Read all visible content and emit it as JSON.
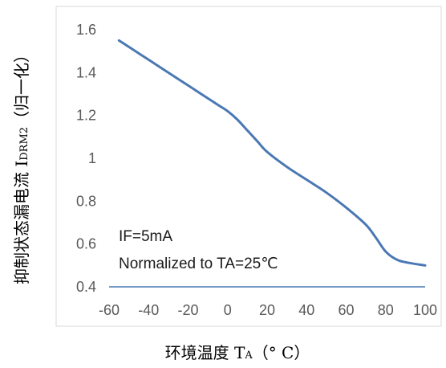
{
  "chart_data": {
    "type": "line",
    "title": "",
    "xlabel": {
      "main": "环境温度 T",
      "sub": "A",
      "unit": "（° C）"
    },
    "ylabel": {
      "main": "抑制状态漏电流 I",
      "sub": "DRM2",
      "unit": "（归一化）"
    },
    "xlim": [
      -60,
      100
    ],
    "ylim": [
      0.4,
      1.6
    ],
    "x_ticks": [
      "-60",
      "-40",
      "-20",
      "0",
      "20",
      "40",
      "60",
      "80",
      "100"
    ],
    "y_ticks": [
      "0.4",
      "0.6",
      "0.8",
      "1",
      "1.2",
      "1.4",
      "1.6"
    ],
    "grid": false,
    "series": [
      {
        "color": "#4a78b4",
        "points": [
          [
            -55,
            1.55
          ],
          [
            -45,
            1.49
          ],
          [
            -35,
            1.43
          ],
          [
            -25,
            1.37
          ],
          [
            -15,
            1.31
          ],
          [
            -5,
            1.25
          ],
          [
            0,
            1.22
          ],
          [
            5,
            1.18
          ],
          [
            10,
            1.13
          ],
          [
            15,
            1.08
          ],
          [
            20,
            1.03
          ],
          [
            30,
            0.96
          ],
          [
            40,
            0.9
          ],
          [
            50,
            0.84
          ],
          [
            60,
            0.77
          ],
          [
            70,
            0.69
          ],
          [
            75,
            0.63
          ],
          [
            80,
            0.565
          ],
          [
            85,
            0.53
          ],
          [
            90,
            0.515
          ],
          [
            100,
            0.5
          ]
        ]
      }
    ],
    "annotations": [
      "IF=5mA",
      "Normalized to TA=25℃"
    ],
    "axis_color": "#4a78b4"
  }
}
